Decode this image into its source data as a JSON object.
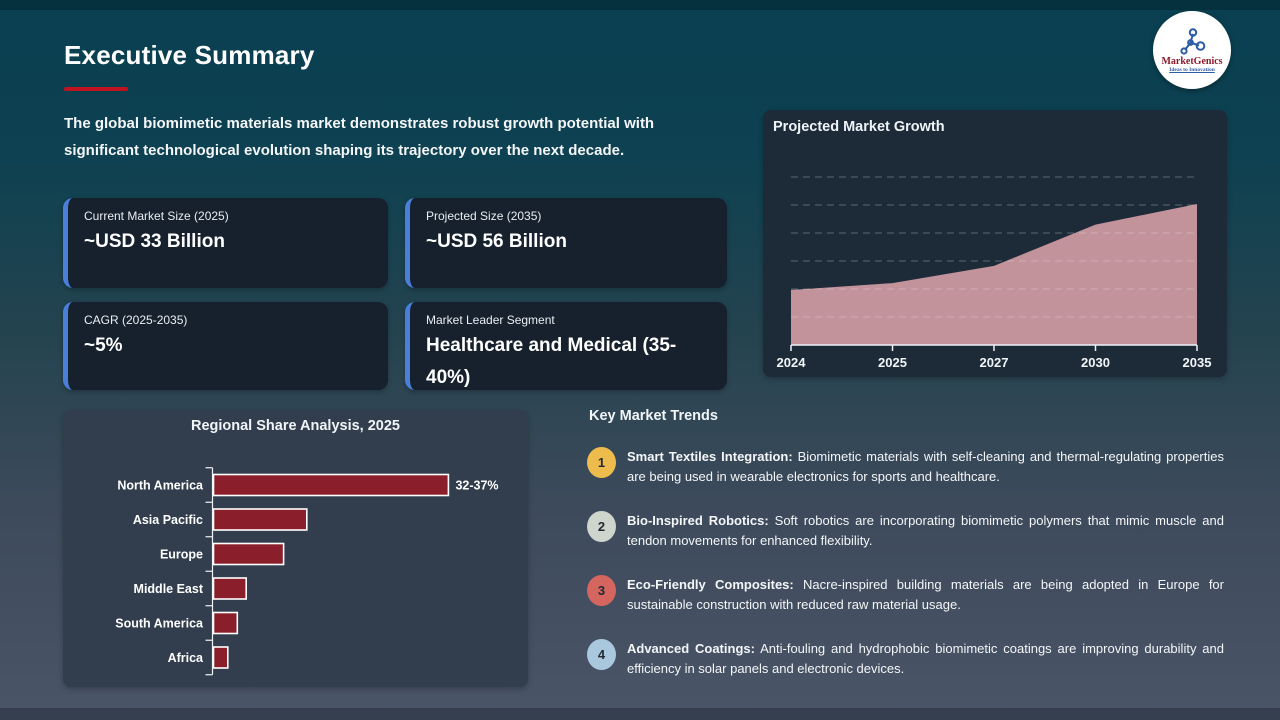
{
  "slide": {
    "title": "Executive Summary",
    "intro": "The global biomimetic materials market demonstrates robust growth potential with significant technological evolution shaping its trajectory over the next decade."
  },
  "logo": {
    "name": "MarketGenics",
    "tagline": "Ideas to Innovation",
    "icon": "molecule-network-icon"
  },
  "colors": {
    "accent_red": "#c01320",
    "stat_accent_blue": "#4a7fd9",
    "area_fill": "#c2939a",
    "bar_fill": "#8b1e2b",
    "bar_border": "#ffffff",
    "gridline": "rgba(230,240,245,0.30)"
  },
  "stat_cards": [
    {
      "label": "Current Market Size (2025)",
      "value": "~USD 33 Billion"
    },
    {
      "label": "Projected Size (2035)",
      "value": "~USD 56 Billion"
    },
    {
      "label": "CAGR (2025-2035)",
      "value": "~5%"
    },
    {
      "label": "Market Leader Segment",
      "value": "Healthcare and Medical (35-40%)"
    }
  ],
  "chart_data": [
    {
      "type": "area",
      "title": "Projected Market Growth",
      "x": [
        "2024",
        "2025",
        "2027",
        "2030",
        "2035"
      ],
      "values": [
        31,
        33,
        38,
        50,
        56
      ],
      "unit": "USD Billion (estimated from area heights; 2025=33, 2035=56 per stat cards)",
      "ylim": [
        15,
        62
      ],
      "grid": "horizontal-dashed",
      "legend": "none"
    },
    {
      "type": "bar",
      "orientation": "horizontal",
      "title": "Regional Share Analysis, 2025",
      "categories": [
        "North America",
        "Asia Pacific",
        "Europe",
        "Middle East",
        "South America",
        "Africa"
      ],
      "values": [
        34.5,
        13.7,
        10.3,
        4.8,
        3.5,
        2.1
      ],
      "data_labels": [
        "32-37%",
        "",
        "",
        "",
        "",
        ""
      ],
      "xlabel": "",
      "ylabel": "",
      "xlim": [
        0,
        36
      ],
      "grid": "off",
      "legend": "none"
    }
  ],
  "trends": {
    "heading": "Key Market Trends",
    "items": [
      {
        "num": "1",
        "badge_color": "#eebb4d",
        "title": "Smart Textiles Integration:",
        "text": "Biomimetic materials with self-cleaning and thermal-regulating properties are being used in wearable electronics for sports and healthcare."
      },
      {
        "num": "2",
        "badge_color": "#cdd5cc",
        "title": "Bio-Inspired Robotics:",
        "text": "Soft robotics are incorporating biomimetic polymers that mimic muscle and tendon movements for enhanced flexibility."
      },
      {
        "num": "3",
        "badge_color": "#d4655f",
        "title": "Eco-Friendly Composites:",
        "text": "Nacre-inspired building materials are being adopted in Europe for sustainable construction with reduced raw material usage."
      },
      {
        "num": "4",
        "badge_color": "#a9c8de",
        "title": "Advanced Coatings:",
        "text": "Anti-fouling and hydrophobic biomimetic coatings are improving durability and efficiency in solar panels and electronic devices."
      }
    ]
  }
}
